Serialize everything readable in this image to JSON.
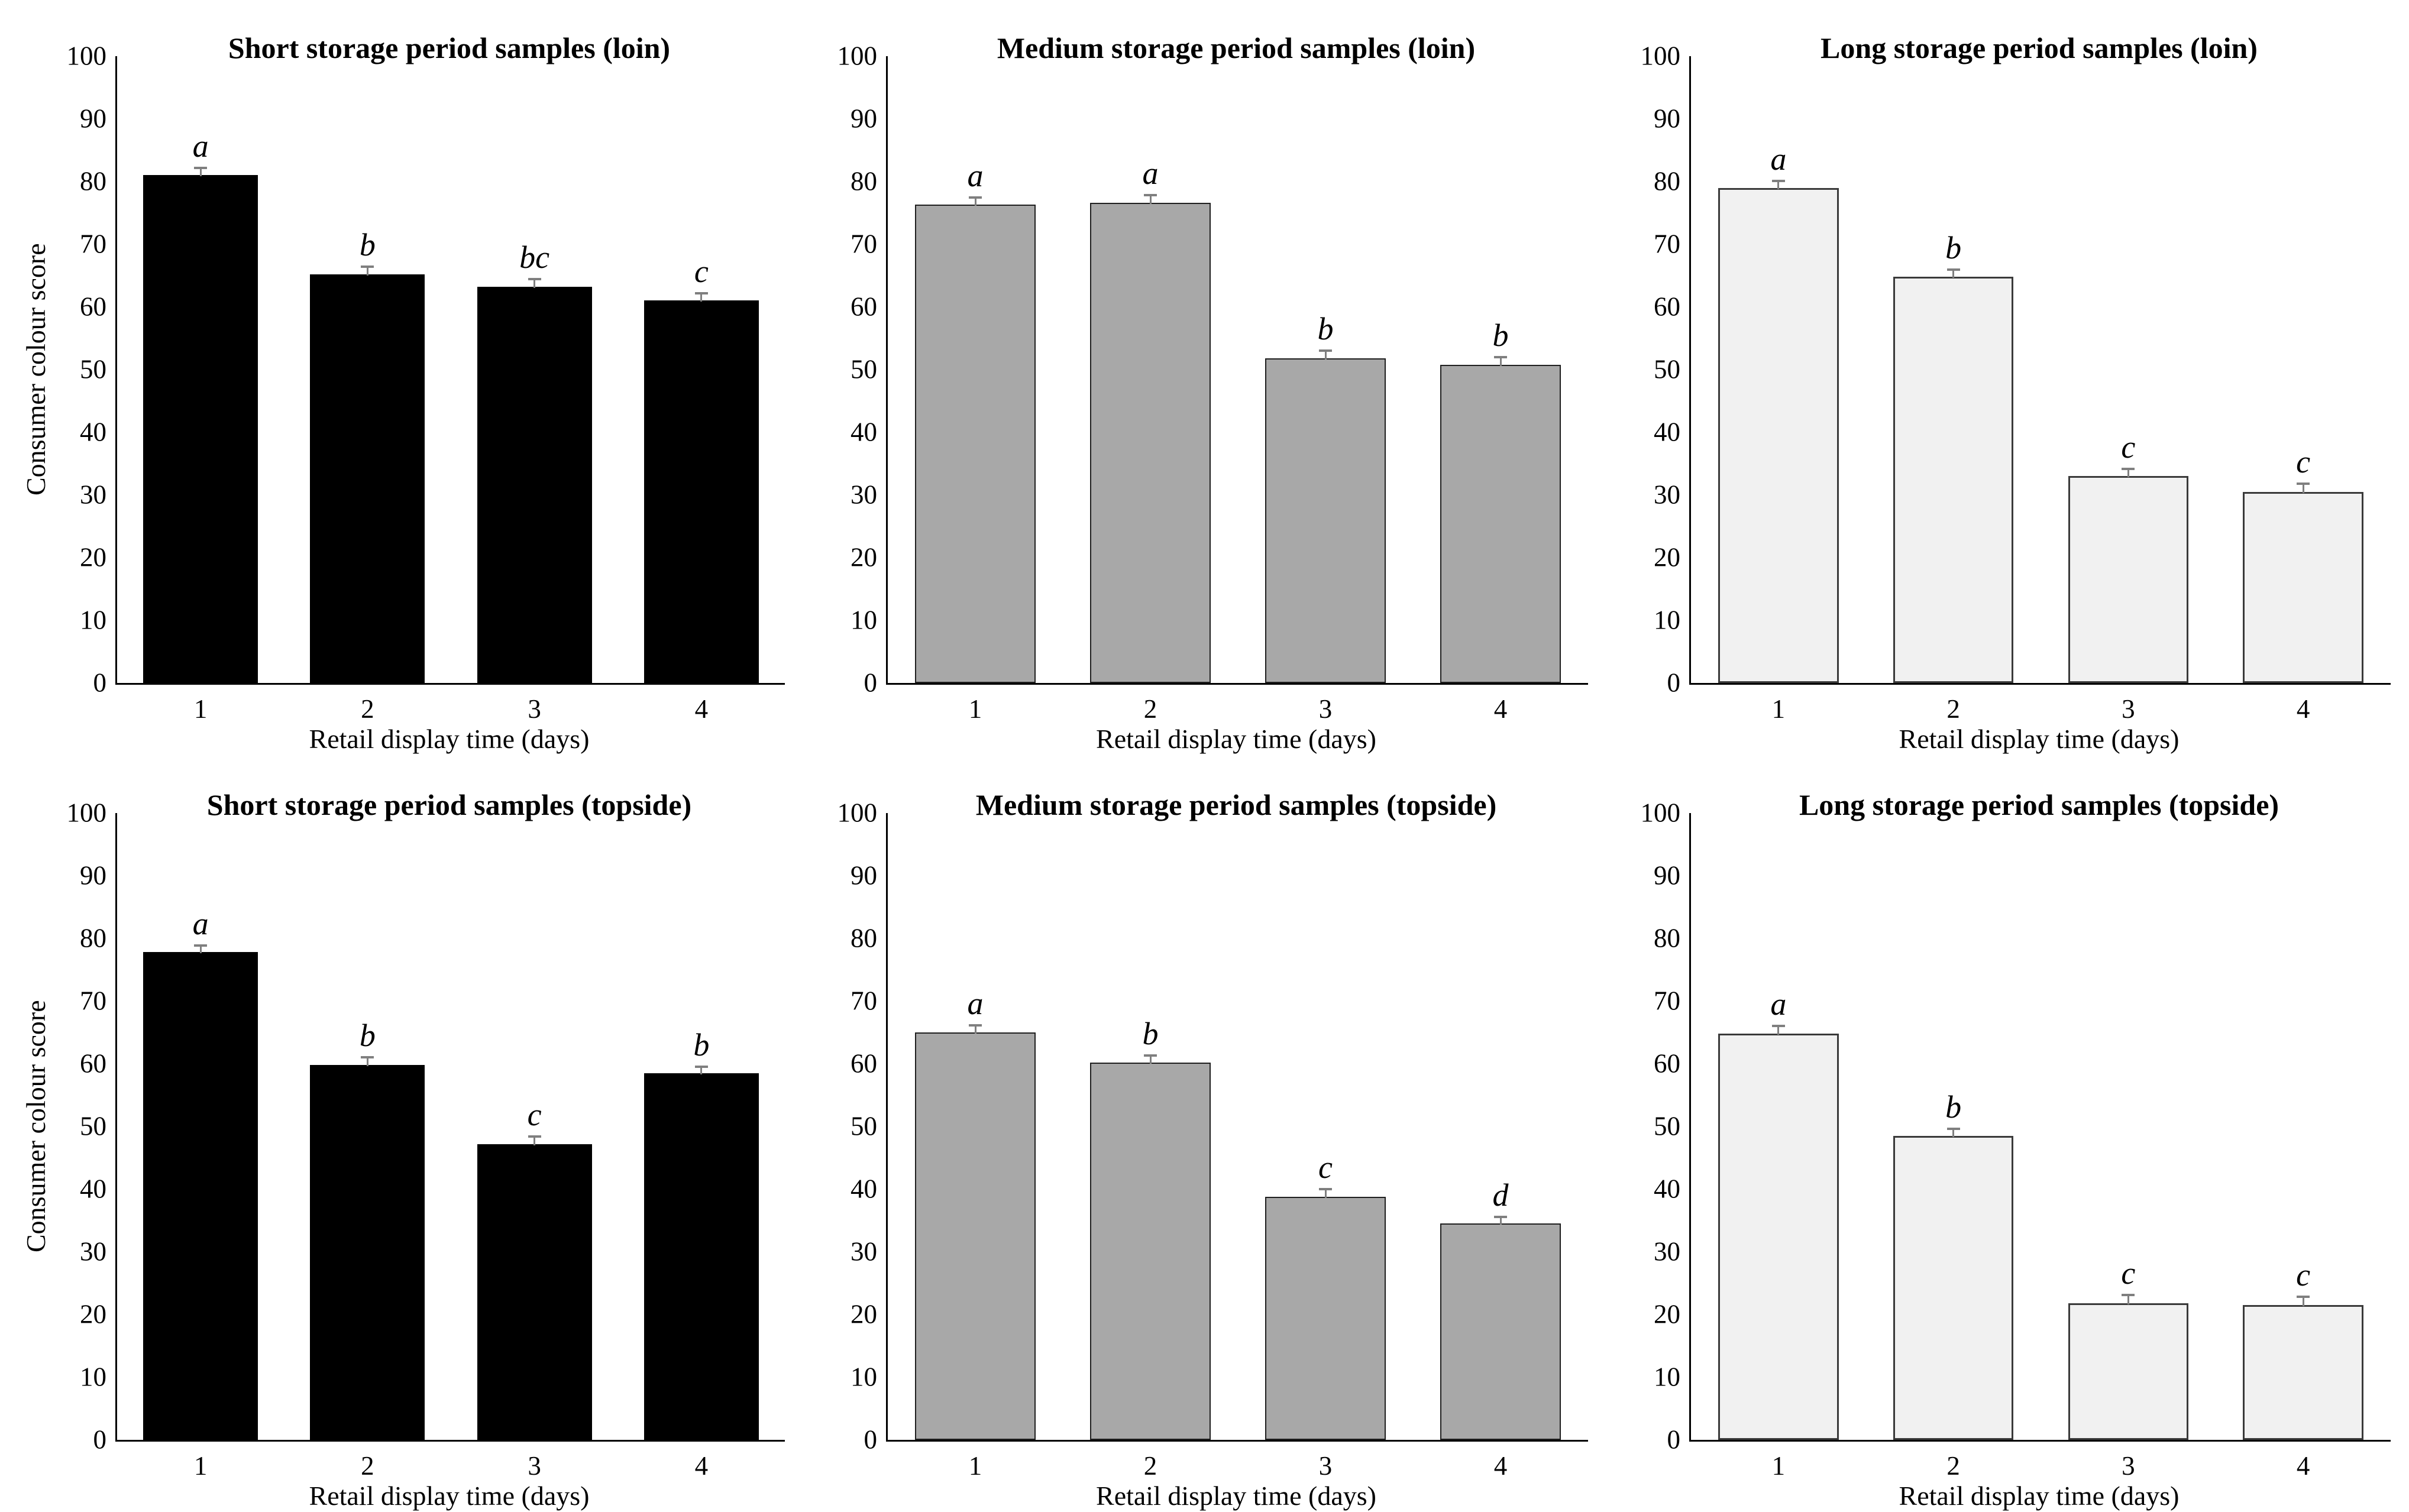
{
  "styles": {
    "background": "#ffffff",
    "axis_color": "#000000",
    "text_color": "#000000",
    "error_bar_color": "#7f7f7f"
  },
  "chart_data": [
    {
      "type": "bar",
      "title": "Short storage period samples (loin)",
      "xlabel": "Retail display time (days)",
      "ylabel": "Consumer colour score",
      "ylim": [
        0,
        100
      ],
      "ytick_step": 10,
      "grid": false,
      "legend": null,
      "categories": [
        "1",
        "2",
        "3",
        "4"
      ],
      "values": [
        81,
        65.2,
        63.2,
        61
      ],
      "errors": [
        1.4,
        1.4,
        1.4,
        1.4
      ],
      "sig_letters": [
        "a",
        "b",
        "bc",
        "c"
      ],
      "bar_fill": "#000000",
      "bar_border": "#000000",
      "bar_border_width": 2
    },
    {
      "type": "bar",
      "title": "Medium storage period samples (loin)",
      "xlabel": "Retail display time (days)",
      "ylim": [
        0,
        100
      ],
      "ytick_step": 10,
      "grid": false,
      "legend": null,
      "categories": [
        "1",
        "2",
        "3",
        "4"
      ],
      "values": [
        76.3,
        76.6,
        51.8,
        50.8
      ],
      "errors": [
        1.3,
        1.4,
        1.4,
        1.4
      ],
      "sig_letters": [
        "a",
        "a",
        "b",
        "b"
      ],
      "bar_fill": "#a8a8a8",
      "bar_border": "#1f1f1f",
      "bar_border_width": 2
    },
    {
      "type": "bar",
      "title": "Long storage period samples (loin)",
      "xlabel": "Retail display time (days)",
      "ylim": [
        0,
        100
      ],
      "ytick_step": 10,
      "grid": false,
      "legend": null,
      "categories": [
        "1",
        "2",
        "3",
        "4"
      ],
      "values": [
        79,
        64.8,
        33,
        30.5
      ],
      "errors": [
        1.3,
        1.3,
        1.3,
        1.5
      ],
      "sig_letters": [
        "a",
        "b",
        "c",
        "c"
      ],
      "bar_fill": "#f1f1f1",
      "bar_border": "#3a3a3a",
      "bar_border_width": 3
    },
    {
      "type": "bar",
      "title": "Short storage period samples (topside)",
      "xlabel": "Retail display time (days)",
      "ylabel": "Consumer colour score",
      "ylim": [
        0,
        100
      ],
      "ytick_step": 10,
      "grid": false,
      "legend": null,
      "categories": [
        "1",
        "2",
        "3",
        "4"
      ],
      "values": [
        77.8,
        59.8,
        47.2,
        58.5
      ],
      "errors": [
        1.3,
        1.4,
        1.4,
        1.2
      ],
      "sig_letters": [
        "a",
        "b",
        "c",
        "b"
      ],
      "bar_fill": "#000000",
      "bar_border": "#000000",
      "bar_border_width": 2
    },
    {
      "type": "bar",
      "title": "Medium storage period samples (topside)",
      "xlabel": "Retail display time (days)",
      "ylim": [
        0,
        100
      ],
      "ytick_step": 10,
      "grid": false,
      "legend": null,
      "categories": [
        "1",
        "2",
        "3",
        "4"
      ],
      "values": [
        65,
        60.2,
        38.8,
        34.5
      ],
      "errors": [
        1.3,
        1.3,
        1.4,
        1.3
      ],
      "sig_letters": [
        "a",
        "b",
        "c",
        "d"
      ],
      "bar_fill": "#a8a8a8",
      "bar_border": "#1f1f1f",
      "bar_border_width": 2
    },
    {
      "type": "bar",
      "title": "Long storage period samples (topside)",
      "xlabel": "Retail display time (days)",
      "ylim": [
        0,
        100
      ],
      "ytick_step": 10,
      "grid": false,
      "legend": null,
      "categories": [
        "1",
        "2",
        "3",
        "4"
      ],
      "values": [
        64.8,
        48.5,
        21.8,
        21.5
      ],
      "errors": [
        1.4,
        1.3,
        1.5,
        1.5
      ],
      "sig_letters": [
        "a",
        "b",
        "c",
        "c"
      ],
      "bar_fill": "#f1f1f1",
      "bar_border": "#3a3a3a",
      "bar_border_width": 3
    }
  ]
}
